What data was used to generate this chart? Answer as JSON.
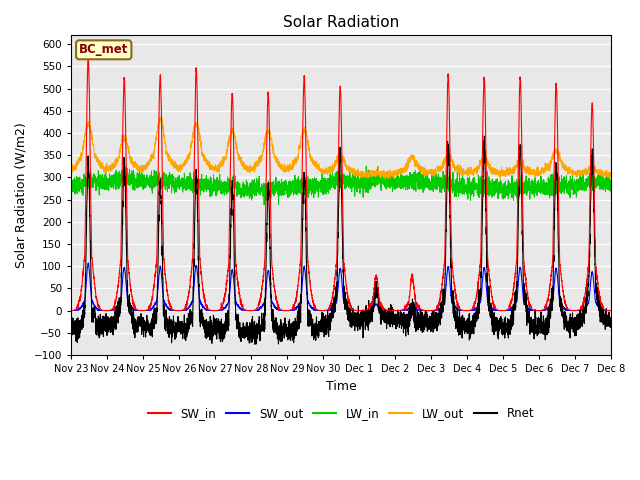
{
  "title": "Solar Radiation",
  "ylabel": "Solar Radiation (W/m2)",
  "xlabel": "Time",
  "ylim": [
    -100,
    620
  ],
  "yticks": [
    -100,
    -50,
    0,
    50,
    100,
    150,
    200,
    250,
    300,
    350,
    400,
    450,
    500,
    550,
    600
  ],
  "xtick_labels": [
    "Nov 23",
    "Nov 24",
    "Nov 25",
    "Nov 26",
    "Nov 27",
    "Nov 28",
    "Nov 29",
    "Nov 30",
    "Dec 1",
    "Dec 2",
    "Dec 3",
    "Dec 4",
    "Dec 5",
    "Dec 6",
    "Dec 7",
    "Dec 8"
  ],
  "station_label": "BC_met",
  "colors": {
    "SW_in": "#ff0000",
    "SW_out": "#0000ff",
    "LW_in": "#00cc00",
    "LW_out": "#ffa500",
    "Rnet": "#000000"
  },
  "bg_color": "#e8e8e8",
  "title_fontsize": 11,
  "label_fontsize": 9,
  "SW_peaks": [
    570,
    525,
    530,
    545,
    490,
    490,
    530,
    505,
    80,
    80,
    530,
    525,
    525,
    510,
    465
  ],
  "LW_out_day_peaks": [
    420,
    390,
    430,
    420,
    405,
    405,
    405,
    350,
    310,
    345,
    350,
    340,
    335,
    360,
    320
  ],
  "night_Rnet": -35
}
